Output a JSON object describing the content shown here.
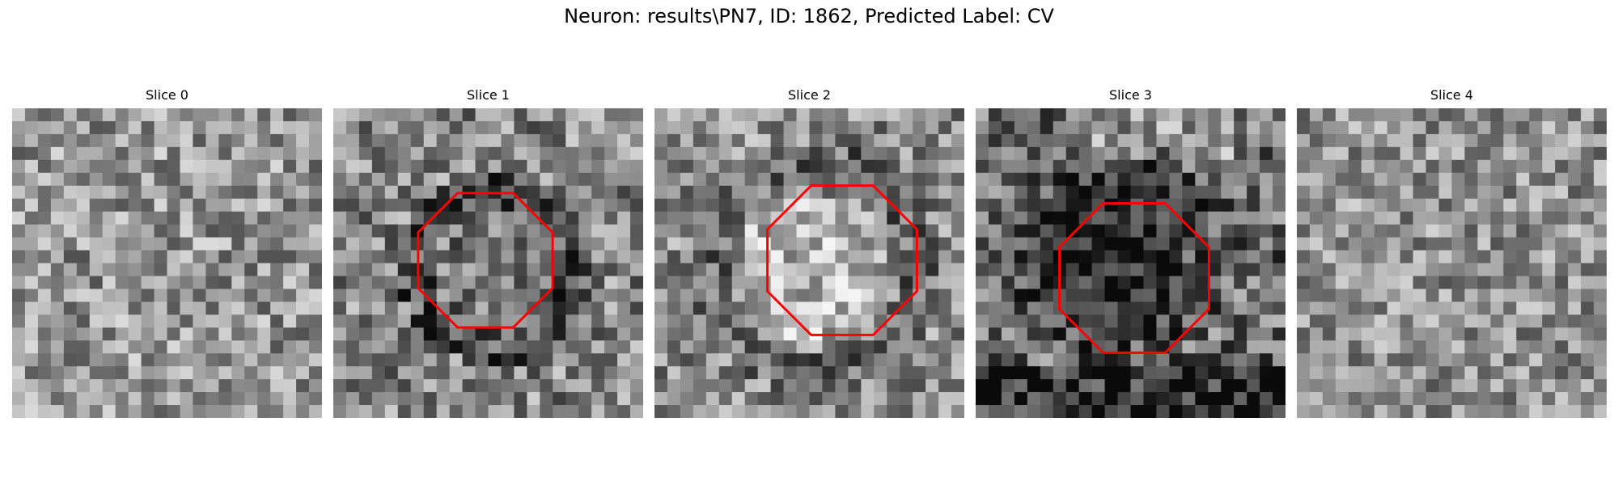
{
  "figure": {
    "title": "Neuron: results\\PN7, ID: 1862, Predicted Label: CV"
  },
  "slices": [
    {
      "title": "Slice 0",
      "has_outline": false,
      "seed": 11,
      "mean": 150,
      "contrast": 70,
      "blob": null
    },
    {
      "title": "Slice 1",
      "has_outline": true,
      "outline_color": "#ff0000",
      "seed": 23,
      "mean": 135,
      "contrast": 75,
      "blob": "dark-ring"
    },
    {
      "title": "Slice 2",
      "has_outline": true,
      "outline_color": "#ff0000",
      "seed": 37,
      "mean": 140,
      "contrast": 70,
      "blob": "bright-center"
    },
    {
      "title": "Slice 3",
      "has_outline": true,
      "outline_color": "#ff0000",
      "seed": 41,
      "mean": 105,
      "contrast": 80,
      "blob": "dark-cell"
    },
    {
      "title": "Slice 4",
      "has_outline": false,
      "seed": 53,
      "mean": 145,
      "contrast": 65,
      "blob": null
    }
  ],
  "colors": {
    "outline": "#ff0000",
    "background": "#ffffff"
  }
}
